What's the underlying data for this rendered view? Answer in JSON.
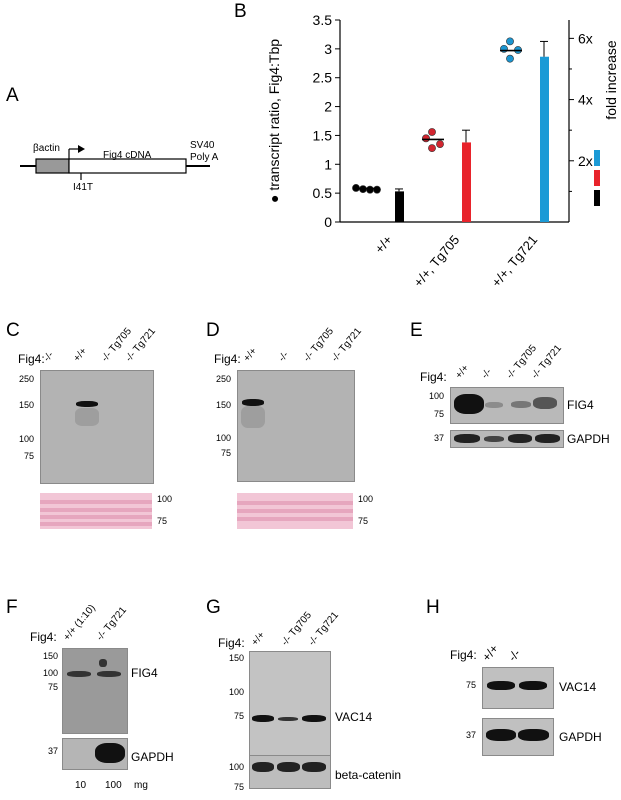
{
  "panels": {
    "A": {
      "label": "A",
      "beta_actin": "βactin",
      "cdna": "Fig4  cDNA",
      "polyA_line1": "SV40",
      "polyA_line2": "Poly A",
      "mutation": "I41T"
    },
    "B": {
      "label": "B"
    },
    "C": {
      "label": "C",
      "fig4_label": "Fig4:",
      "lanes": [
        "-/-",
        "+/+",
        "-/- Tg705",
        "-/- Tg721"
      ],
      "mw_left": [
        "250",
        "150",
        "100",
        "75"
      ],
      "mw_right": [
        "100",
        "75"
      ]
    },
    "D": {
      "label": "D",
      "fig4_label": "Fig4:",
      "lanes": [
        "+/+",
        "-/-",
        "-/- Tg705",
        "-/- Tg721"
      ],
      "mw_left": [
        "250",
        "150",
        "100",
        "75"
      ],
      "mw_right": [
        "100",
        "75"
      ]
    },
    "E": {
      "label": "E",
      "fig4_label": "Fig4:",
      "lanes": [
        "+/+",
        "-/-",
        "-/- Tg705",
        "-/- Tg721"
      ],
      "mw": [
        "100",
        "75",
        "37"
      ],
      "protein1": "FIG4",
      "protein2": "GAPDH"
    },
    "F": {
      "label": "F",
      "fig4_label": "Fig4:",
      "lanes": [
        "+/+ (1:10)",
        "-/- Tg721"
      ],
      "mw": [
        "150",
        "100",
        "75",
        "37"
      ],
      "protein1": "FIG4",
      "protein2": "GAPDH",
      "loads": [
        "10",
        "100"
      ],
      "unit": "mg"
    },
    "G": {
      "label": "G",
      "fig4_label": "Fig4:",
      "lanes": [
        "+/+",
        "-/- Tg705",
        "-/- Tg721"
      ],
      "mw1": [
        "150",
        "100",
        "75"
      ],
      "mw2": [
        "100",
        "75"
      ],
      "protein1": "VAC14",
      "protein2": "beta-catenin"
    },
    "H": {
      "label": "H",
      "fig4_label": "Fig4:",
      "lanes": [
        "+/+",
        "-/-"
      ],
      "mw": [
        "75",
        "37"
      ],
      "protein1": "VAC14",
      "protein2": "GAPDH"
    }
  },
  "chart_data": {
    "type": "bar",
    "categories": [
      "+/+",
      "+/+, Tg705",
      "+/+, Tg721"
    ],
    "ylabel": "● transcript ratio, Fig4:Tbp",
    "ylim": [
      0,
      3.5
    ],
    "yticks": [
      "0",
      "0.5",
      "1",
      "1.5",
      "2",
      "2.5",
      "3",
      "3.5"
    ],
    "y2label": "fold increase",
    "y2ticks": [
      "2x",
      "4x",
      "6x"
    ],
    "y2lim": [
      0,
      6.6
    ],
    "points": [
      [
        0.59,
        0.57,
        0.56,
        0.56
      ],
      [
        1.56,
        1.45,
        1.35,
        1.28
      ],
      [
        3.13,
        3.0,
        2.98,
        2.83
      ]
    ],
    "means": [
      0.58,
      1.43,
      2.97
    ],
    "fold_values": [
      1.0,
      2.6,
      5.4
    ],
    "fold_err": [
      0.08,
      0.4,
      0.5
    ],
    "colors": [
      "#000000",
      "#e8232b",
      "#1b9ad6"
    ],
    "point_colors": [
      "#000000",
      "#d22630",
      "#1b95d0"
    ]
  }
}
